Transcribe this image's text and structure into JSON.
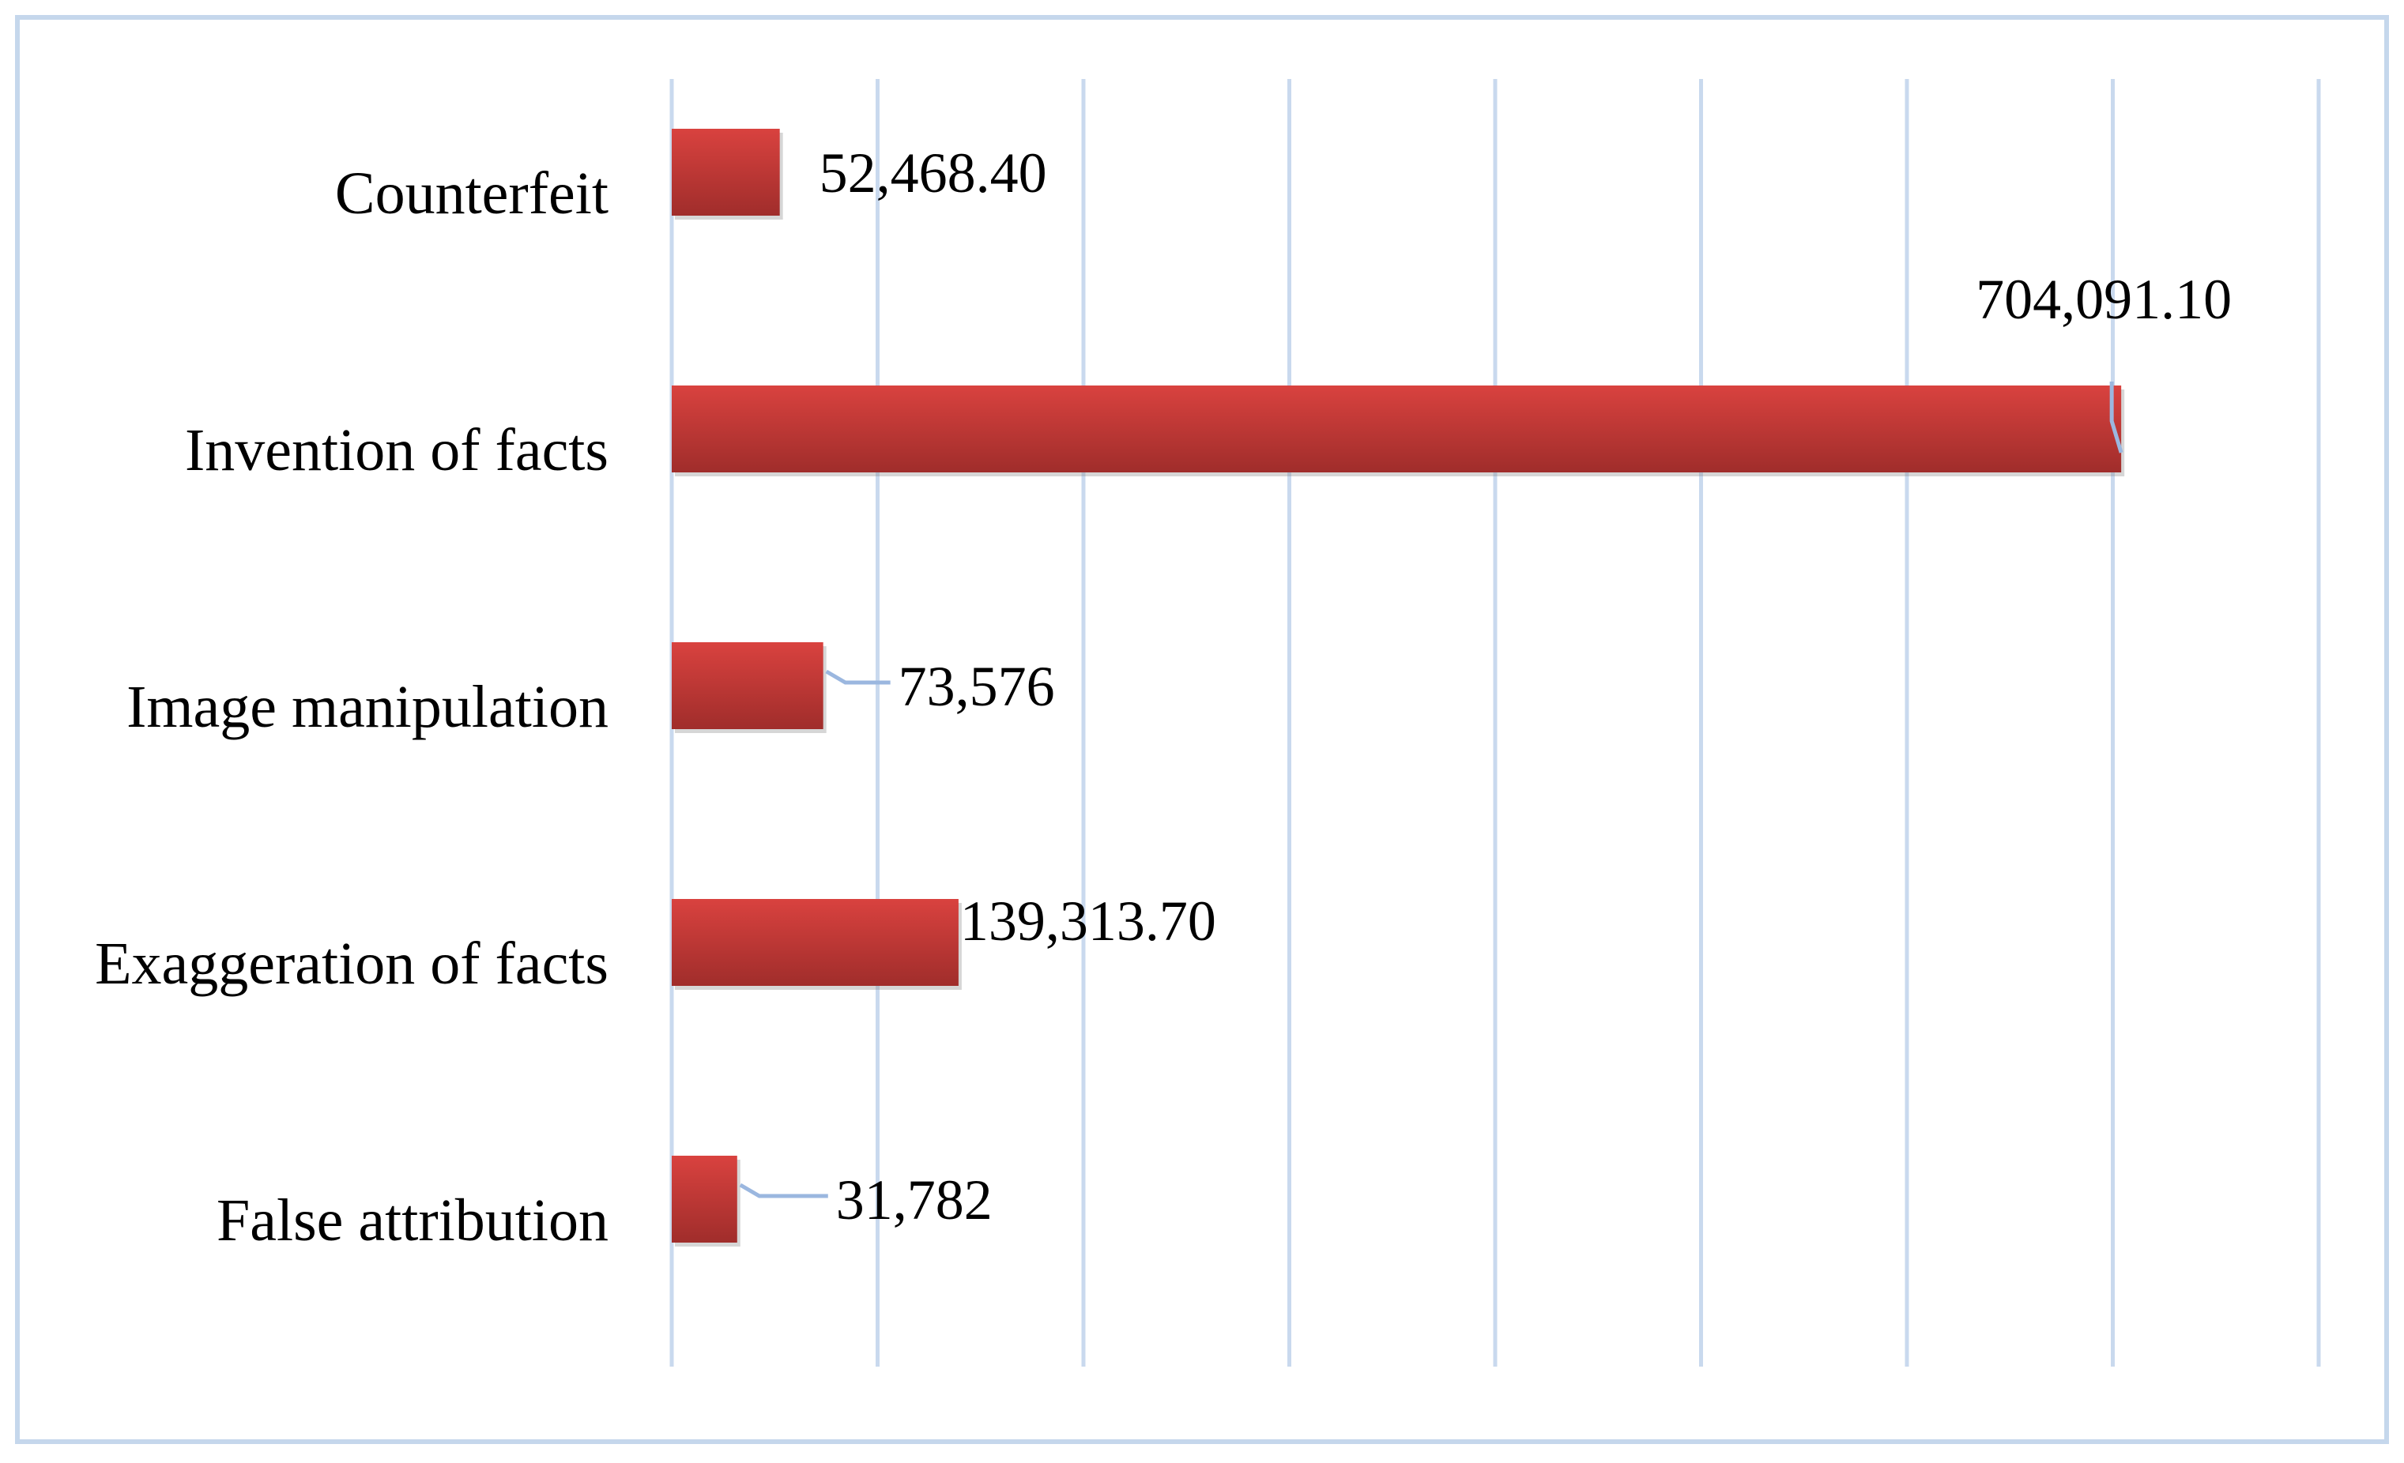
{
  "chart_data": {
    "type": "bar",
    "orientation": "horizontal",
    "title": "",
    "xlabel": "",
    "ylabel": "",
    "xlim": [
      0,
      800000
    ],
    "tick_step": 100000,
    "grid": true,
    "legend": "none",
    "categories": [
      "Counterfeit",
      "Invention of facts",
      "Image manipulation",
      "Exaggeration of facts",
      "False attribution"
    ],
    "values": [
      52468.4,
      704091.1,
      73576,
      139313.7,
      31782
    ],
    "data_labels": [
      "52,468.40",
      "704,091.10",
      "73,576",
      "139,313.70",
      "31,782"
    ]
  },
  "colors": {
    "bar_top": "#d9423f",
    "bar_bottom": "#a02d2b",
    "grid": "#c9d9ee",
    "frame": "#c5d7ec",
    "leader": "#9bb7df"
  }
}
